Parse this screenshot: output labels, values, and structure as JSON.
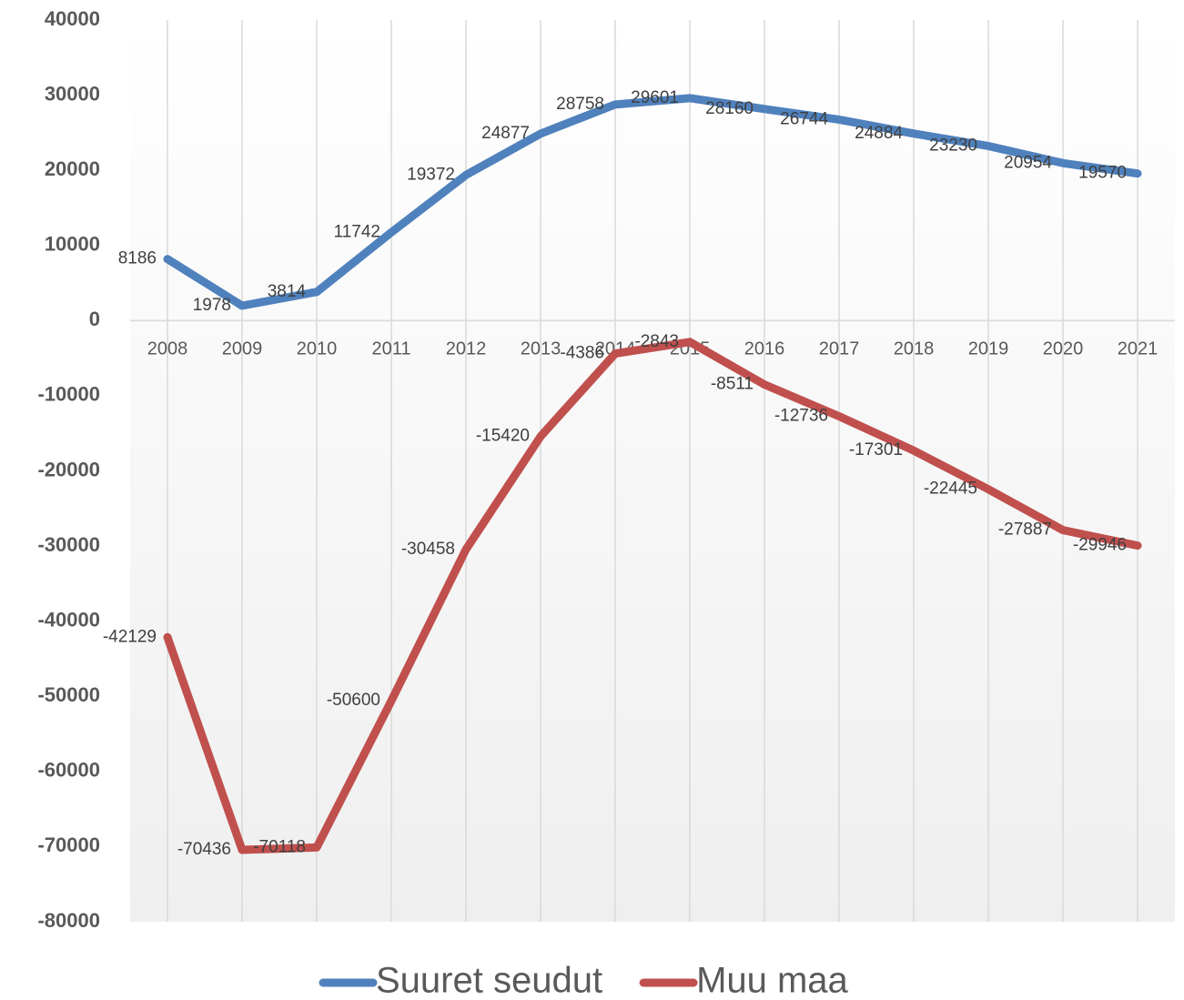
{
  "chart_data": {
    "type": "line",
    "categories": [
      "2008",
      "2009",
      "2010",
      "2011",
      "2012",
      "2013",
      "2014",
      "2015",
      "2016",
      "2017",
      "2018",
      "2019",
      "2020",
      "2021"
    ],
    "series": [
      {
        "name": "Suuret seudut",
        "color": "#4f81bd",
        "values": [
          8186,
          1978,
          3814,
          11742,
          19372,
          24877,
          28758,
          29601,
          28160,
          26744,
          24884,
          23230,
          20954,
          19570
        ]
      },
      {
        "name": "Muu maa",
        "color": "#c0504d",
        "values": [
          -42129,
          -70436,
          -70118,
          -50600,
          -30458,
          -15420,
          -4386,
          -2843,
          -8511,
          -12736,
          -17301,
          -22445,
          -27887,
          -29946
        ]
      }
    ],
    "ylim": [
      -80000,
      40000
    ],
    "yticks": [
      -80000,
      -70000,
      -60000,
      -50000,
      -40000,
      -30000,
      -20000,
      -10000,
      0,
      10000,
      20000,
      30000,
      40000
    ],
    "grid": true,
    "legend": "bottom"
  }
}
